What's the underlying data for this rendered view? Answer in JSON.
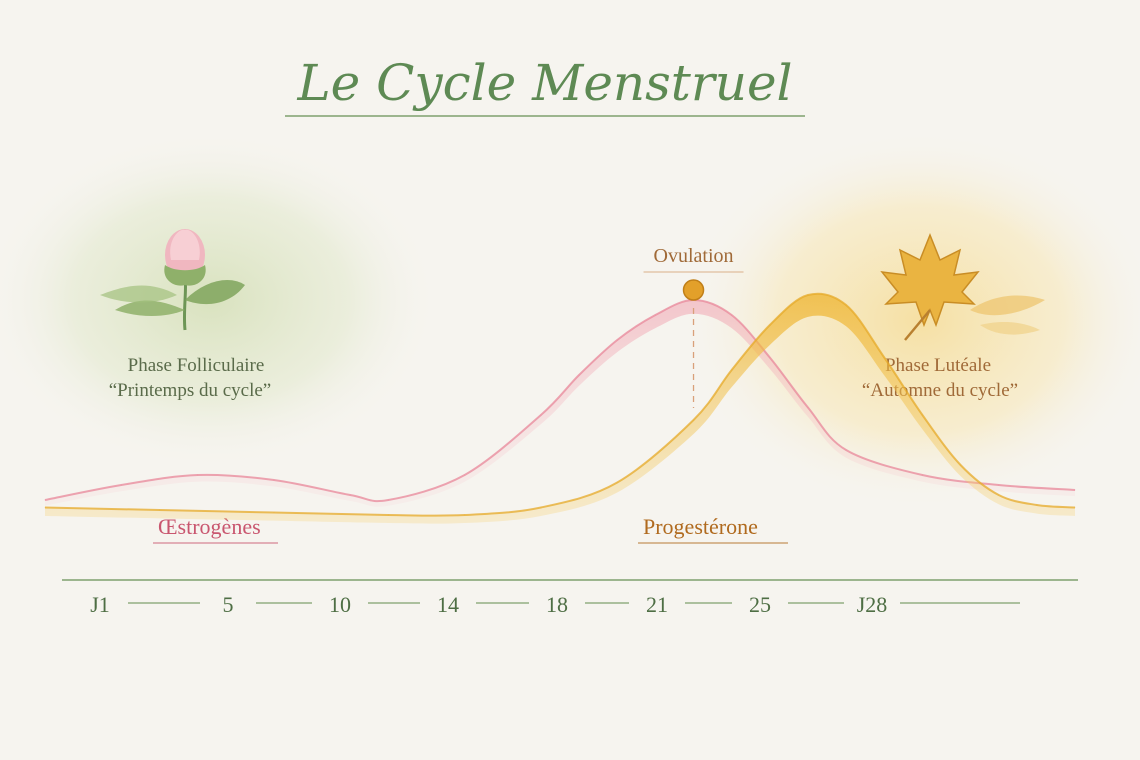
{
  "title": "Le Cycle Menstruel",
  "phases": {
    "follicular": {
      "name": "Phase Folliculaire",
      "subtitle": "“Printemps du cycle”",
      "icon": "flower-bud-icon"
    },
    "luteal": {
      "name": "Phase Lutéale",
      "subtitle": "“Automne du cycle”",
      "icon": "maple-leaf-icon"
    }
  },
  "ovulation": {
    "label": "Ovulation",
    "day": 18
  },
  "colors": {
    "estrogen": "#e8879a",
    "progesterone": "#e6a928",
    "accent_green": "#5e8a54",
    "autumn_text": "#a06a38"
  },
  "chart_data": {
    "type": "area",
    "x_tick_labels": [
      "J1",
      "5",
      "10",
      "14",
      "18",
      "21",
      "25",
      "J28"
    ],
    "xlim": [
      1,
      28
    ],
    "ylim": [
      0,
      100
    ],
    "grid": false,
    "series": [
      {
        "name": "Œstrogènes",
        "x": [
          1,
          3,
          5,
          7,
          9,
          10,
          12,
          14,
          15,
          16,
          17,
          18,
          19,
          20,
          21,
          22,
          24,
          26,
          28
        ],
        "y": [
          8,
          14,
          18,
          16,
          10,
          8,
          18,
          42,
          58,
          72,
          82,
          88,
          82,
          65,
          45,
          28,
          18,
          14,
          12
        ]
      },
      {
        "name": "Progestérone",
        "x": [
          1,
          4,
          7,
          10,
          12,
          14,
          16,
          18,
          19,
          20,
          21,
          22,
          23,
          24,
          25,
          26,
          27,
          28
        ],
        "y": [
          5,
          4,
          3,
          2,
          2,
          5,
          15,
          40,
          60,
          78,
          90,
          86,
          65,
          42,
          22,
          10,
          6,
          5
        ]
      }
    ]
  }
}
